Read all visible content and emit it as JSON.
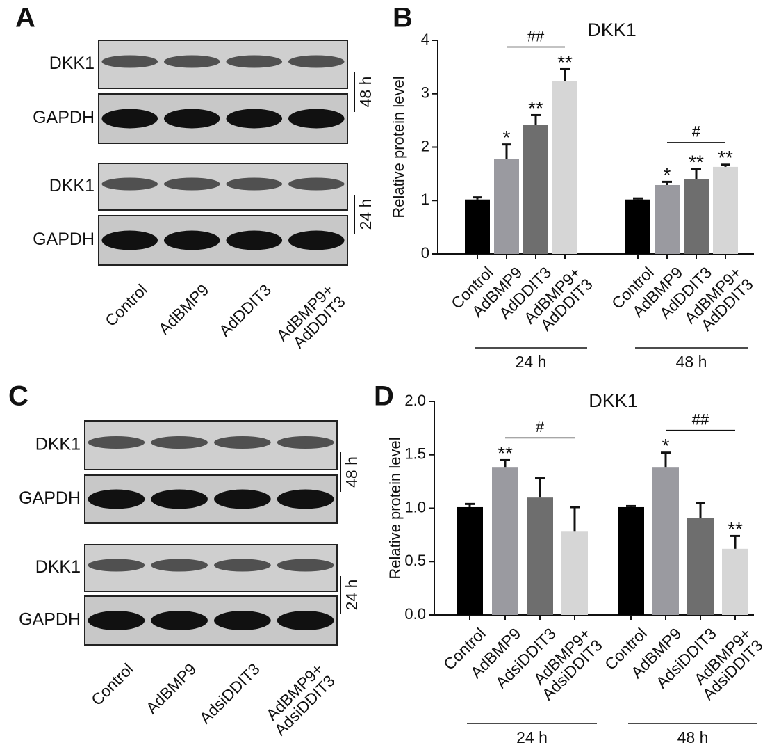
{
  "chart_data": [
    {
      "type": "bar",
      "panel": "B",
      "title": "DKK1",
      "ylabel": "Relative protein level",
      "categories": [
        "Control",
        "AdBMP9",
        "AdDDIT3",
        "AdBMP9+\nAdDDIT3",
        "Control",
        "AdBMP9",
        "AdDDIT3",
        "AdBMP9+\nAdDDIT3"
      ],
      "groups": [
        "24 h",
        "48 h"
      ],
      "values": [
        1.02,
        1.78,
        2.42,
        3.24,
        1.02,
        1.29,
        1.4,
        1.63
      ],
      "errors": [
        0.04,
        0.27,
        0.18,
        0.22,
        0.02,
        0.06,
        0.19,
        0.04
      ],
      "colors": [
        "#000000",
        "#9a9aa0",
        "#6e6e6e",
        "#d6d6d6",
        "#000000",
        "#9a9aa0",
        "#6e6e6e",
        "#d6d6d6"
      ],
      "significance": [
        null,
        "*",
        "**",
        "**",
        null,
        "*",
        "**",
        "**"
      ],
      "brackets": [
        {
          "from": 1,
          "to": 3,
          "label": "##"
        },
        {
          "from": 5,
          "to": 7,
          "label": "#"
        }
      ],
      "ylim": [
        0,
        4
      ],
      "yticks": [
        0,
        1,
        2,
        3,
        4
      ]
    },
    {
      "type": "bar",
      "panel": "D",
      "title": "DKK1",
      "ylabel": "Relative protein level",
      "categories": [
        "Control",
        "AdBMP9",
        "AdsiDDIT3",
        "AdBMP9+\nAdsiDDIT3",
        "Control",
        "AdBMP9",
        "AdsiDDIT3",
        "AdBMP9+\nAdsiDDIT3"
      ],
      "groups": [
        "24 h",
        "48 h"
      ],
      "values": [
        1.01,
        1.38,
        1.1,
        0.78,
        1.01,
        1.38,
        0.91,
        0.62
      ],
      "errors": [
        0.03,
        0.07,
        0.18,
        0.23,
        0.01,
        0.14,
        0.14,
        0.12
      ],
      "colors": [
        "#000000",
        "#9a9aa0",
        "#6e6e6e",
        "#d6d6d6",
        "#000000",
        "#9a9aa0",
        "#6e6e6e",
        "#d6d6d6"
      ],
      "significance": [
        null,
        "**",
        null,
        null,
        null,
        "*",
        null,
        "**"
      ],
      "brackets": [
        {
          "from": 1,
          "to": 3,
          "label": "#"
        },
        {
          "from": 5,
          "to": 7,
          "label": "##"
        }
      ],
      "ylim": [
        0,
        2
      ],
      "yticks": [
        {
          "value": 0,
          "label": "0.0"
        },
        {
          "value": 0.5,
          "label": "0.5"
        },
        {
          "value": 1,
          "label": "1.0"
        },
        {
          "value": 1.5,
          "label": "1.5"
        },
        {
          "value": 2,
          "label": "2.0"
        }
      ]
    }
  ],
  "blots": [
    {
      "panel": "A",
      "lanes": [
        "Control",
        "AdBMP9",
        "AdDDIT3",
        "AdBMP9+\nAdDDIT3"
      ],
      "blocks": [
        {
          "time": "48 h",
          "rows": [
            "DKK1",
            "GAPDH"
          ]
        },
        {
          "time": "24 h",
          "rows": [
            "DKK1",
            "GAPDH"
          ]
        }
      ]
    },
    {
      "panel": "C",
      "lanes": [
        "Control",
        "AdBMP9",
        "AdsiDDIT3",
        "AdBMP9+\nAdsiDDIT3"
      ],
      "blocks": [
        {
          "time": "48 h",
          "rows": [
            "DKK1",
            "GAPDH"
          ]
        },
        {
          "time": "24 h",
          "rows": [
            "DKK1",
            "GAPDH"
          ]
        }
      ]
    }
  ]
}
